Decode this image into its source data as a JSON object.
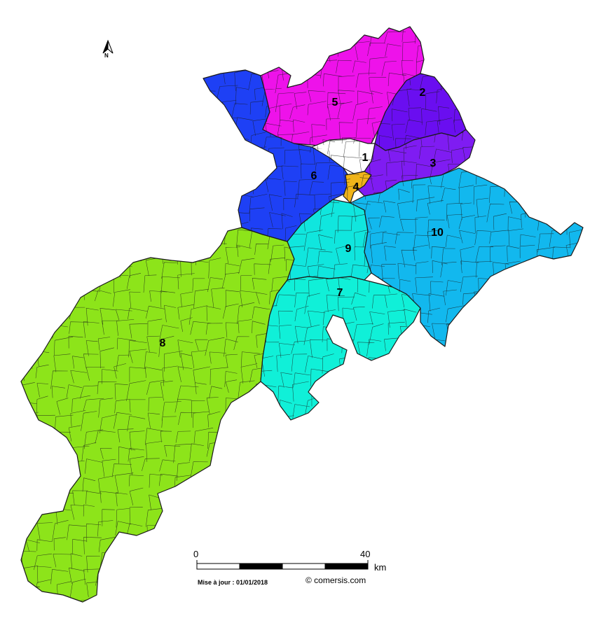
{
  "map": {
    "north_label": "N",
    "zones": [
      {
        "id": "1",
        "color": "#ffffff"
      },
      {
        "id": "2",
        "color": "#6a0ef0"
      },
      {
        "id": "3",
        "color": "#7f1cf2"
      },
      {
        "id": "4",
        "color": "#f0b419"
      },
      {
        "id": "5",
        "color": "#ee12ea"
      },
      {
        "id": "6",
        "color": "#1e40f5"
      },
      {
        "id": "7",
        "color": "#10f0d8"
      },
      {
        "id": "8",
        "color": "#8de41a"
      },
      {
        "id": "9",
        "color": "#10e6de"
      },
      {
        "id": "10",
        "color": "#12b8ee"
      }
    ],
    "scale": {
      "start_label": "0",
      "end_label": "40",
      "unit": "km"
    },
    "update_text": "Mise à jour : 01/01/2018",
    "credit": "© comersis.com"
  }
}
